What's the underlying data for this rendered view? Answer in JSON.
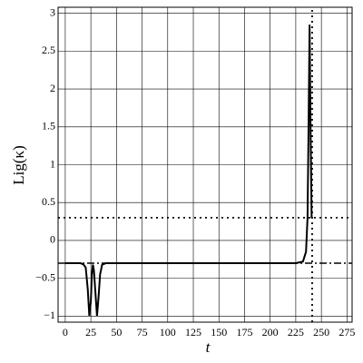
{
  "chart_data": {
    "type": "line",
    "x_label": "t",
    "y_label": "Lig(κ)",
    "xlim": [
      -7,
      280
    ],
    "ylim": [
      -1.08,
      3.08
    ],
    "xticks": [
      0,
      25,
      50,
      75,
      100,
      125,
      150,
      175,
      200,
      225,
      250,
      275
    ],
    "yticks": [
      {
        "value": -1,
        "label": "−1"
      },
      {
        "value": -0.5,
        "label": "−0.5"
      },
      0,
      0.5,
      1,
      1.5,
      2,
      2.5,
      3
    ],
    "grid": true,
    "series": [
      {
        "color": "#000000",
        "dash": "solid",
        "width": 2,
        "x": [
          0,
          15,
          18,
          20,
          22,
          23.5,
          25,
          26,
          27,
          28,
          29.5,
          31,
          32.5,
          34,
          36,
          40,
          60,
          150,
          225,
          232,
          235,
          236.5,
          237.5,
          238.5,
          239.5,
          240.5
        ],
        "values": [
          -0.3,
          -0.3,
          -0.32,
          -0.36,
          -0.65,
          -1,
          -0.8,
          -0.45,
          -0.32,
          -0.4,
          -0.7,
          -1,
          -0.75,
          -0.45,
          -0.32,
          -0.3,
          -0.3,
          -0.3,
          -0.3,
          -0.28,
          -0.15,
          0.3,
          1.5,
          2.85,
          1.4,
          0.3
        ]
      },
      {
        "color": "#000000",
        "dash": "dashdot",
        "width": 1.5,
        "x": [
          -7,
          280
        ],
        "values": [
          -0.3,
          -0.3
        ]
      },
      {
        "color": "#000000",
        "dash": "dotted",
        "width": 1.8,
        "x": [
          -7,
          280
        ],
        "values": [
          0.3,
          0.3
        ]
      },
      {
        "color": "#000000",
        "dash": "dotted",
        "width": 1.8,
        "x": [
          241,
          241
        ],
        "values": [
          -1.08,
          3.08
        ]
      }
    ]
  }
}
